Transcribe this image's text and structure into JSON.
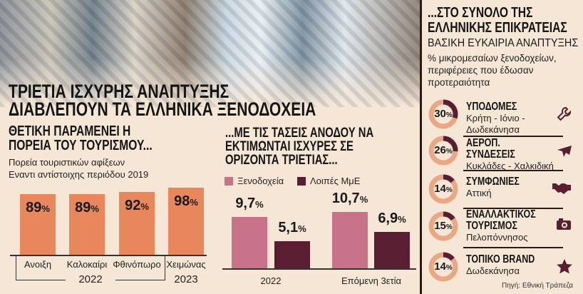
{
  "title": [
    "ΤΡΙΕΤΙΑ ΙΣΧΥΡΗΣ ΑΝΑΠΤΥΞΗΣ",
    "ΔΙΑΒΛΕΠΟΥΝ ΤΑ ΕΛΛΗΝΙΚΑ ΞΕΝΟΔΟΧΕΙΑ"
  ],
  "colors": {
    "background": "#f6e6d5",
    "orange": "#e8865c",
    "pink": "#c9738a",
    "dark": "#5a1e32",
    "ring": "#e8a883"
  },
  "chart_data": [
    {
      "type": "bar",
      "title": "ΘΕΤΙΚΗ ΠΑΡΑΜΕΝΕΙ Η ΠΟΡΕΙΑ ΤΟΥ ΤΟΥΡΙΣΜΟΥ...",
      "subtitle": [
        "Πορεία τουριστικών αφίξεων",
        "Εναντι αντίστοιχης περιόδου 2019"
      ],
      "categories": [
        "Ανοιξη",
        "Καλοκαίρι",
        "Φθινόπωρο",
        "Χειμώνας"
      ],
      "groups": [
        {
          "label": "2022",
          "span": [
            0,
            2
          ]
        },
        {
          "label": "2023",
          "span": [
            3,
            3
          ]
        }
      ],
      "values": [
        89,
        89,
        92,
        98
      ],
      "labels": [
        "89",
        "89",
        "92",
        "98"
      ],
      "unit": "%"
    },
    {
      "type": "bar",
      "title": "...ΜΕ ΤΙΣ ΤΑΣΕΙΣ ΑΝΟΔΟΥ ΝΑ ΕΚΤΙΜΩΝΤΑΙ ΙΣΧΥΡΕΣ ΣΕ ΟΡΙΖΟΝΤΑ ΤΡΙΕΤΙΑΣ...",
      "categories": [
        "2022",
        "Επόμενη 3ετία"
      ],
      "series": [
        {
          "name": "Ξενοδοχεία",
          "values": [
            9.7,
            10.7
          ],
          "labels": [
            "9,7",
            "10,7"
          ]
        },
        {
          "name": "Λοιπές ΜμΕ",
          "values": [
            5.1,
            6.9
          ],
          "labels": [
            "5,1",
            "6,9"
          ]
        }
      ],
      "unit": "%"
    },
    {
      "type": "pie",
      "title": "...ΣΤΟ ΣΥΝΟΛΟ ΤΗΣ ΕΛΛΗΝΙΚΗΣ ΕΠΙΚΡΑΤΕΙΑΣ",
      "subtitle": "ΒΑΣΙΚΗ ΕΥΚΑΙΡΙΑ ΑΝΑΠΤΥΞΗΣ",
      "description": "% μικρομεσαίων ξενοδοχείων, περιφέρειες που έδωσαν προτεραιότητα",
      "items": [
        {
          "value": 30,
          "head": "ΥΠΟΔΟΜΕΣ",
          "regions": "Κρήτη - Ιόνιο - Δωδεκάνησα",
          "icon": "wrench-icon"
        },
        {
          "value": 26,
          "head": "ΑΕΡΟΠ. ΣΥΝΔΕΣΕΙΣ",
          "regions": "Κυκλάδες - Χαλκιδική",
          "icon": "airplane-icon"
        },
        {
          "value": 14,
          "head": "ΣΥΜΦΩΝΙΕΣ",
          "regions": "Αττική",
          "icon": "handshake-icon"
        },
        {
          "value": 15,
          "head": "ΕΝΑΛΛΑΚΤΙΚΟΣ ΤΟΥΡΙΣΜΟΣ",
          "regions": "Πελοπόννησος",
          "icon": "camera-icon"
        },
        {
          "value": 14,
          "head": "ΤΟΠΙΚΟ BRAND",
          "regions": "Δωδεκάνησα",
          "icon": "star-icon"
        }
      ]
    }
  ],
  "source": "Πηγή: Εθνική Τράπεζα"
}
